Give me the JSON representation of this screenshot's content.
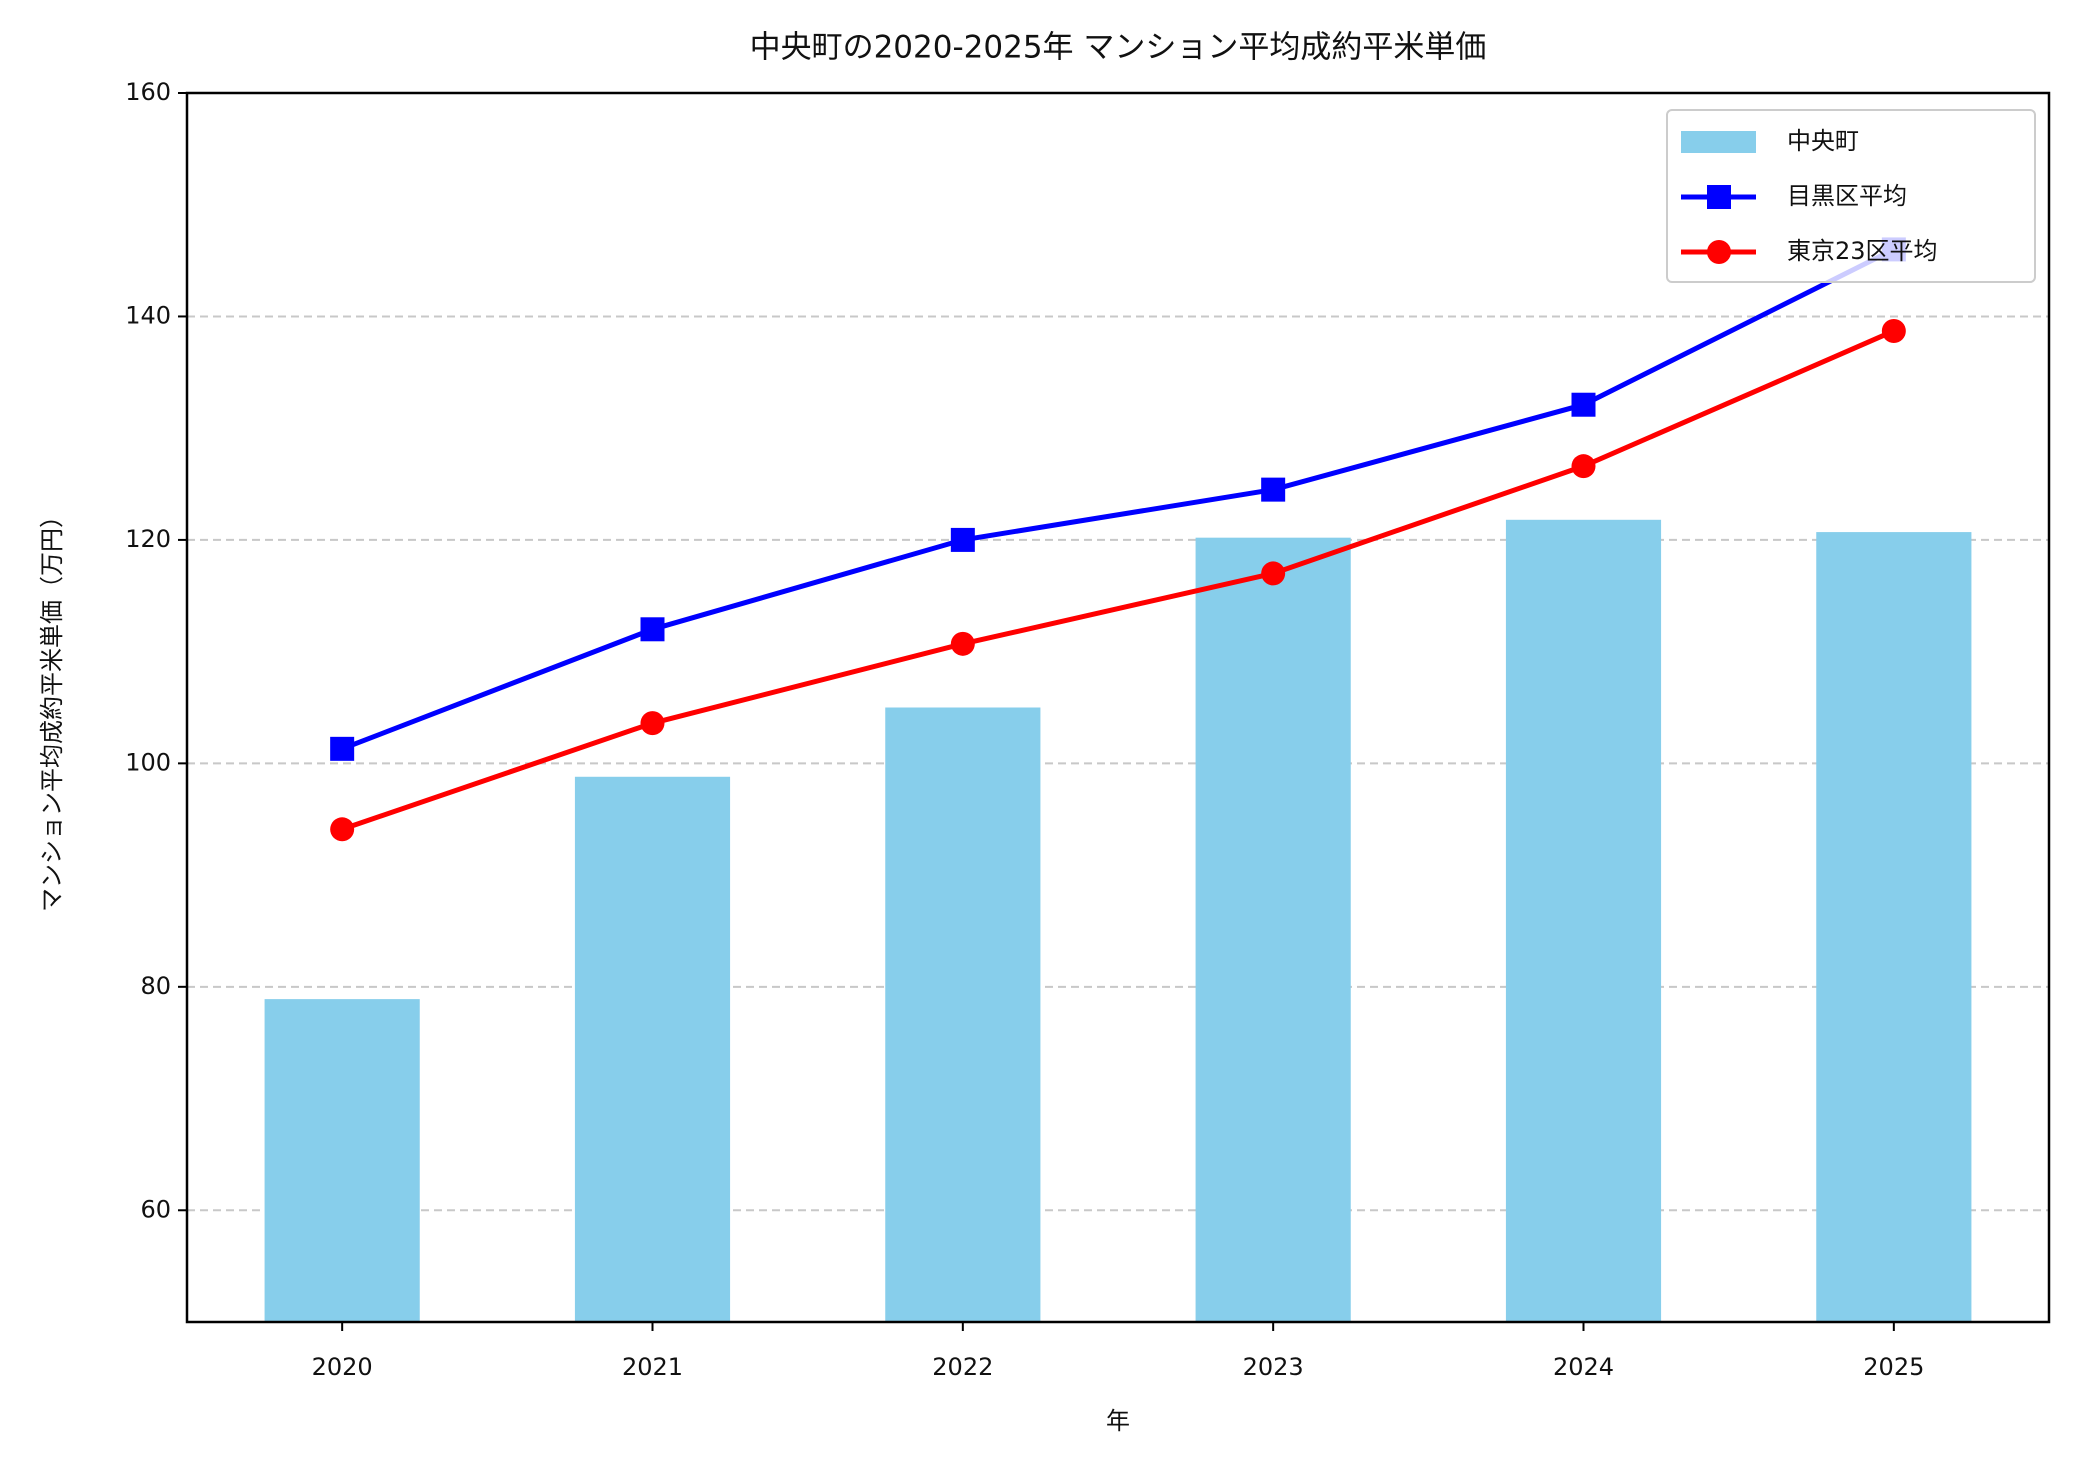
{
  "chart_data": {
    "type": "combo",
    "title": "中央町の2020-2025年 マンション平均成約平米単価",
    "x_label": "年",
    "y_label": "マンション平均成約平米単価（万円）",
    "categories": [
      "2020",
      "2021",
      "2022",
      "2023",
      "2024",
      "2025"
    ],
    "series": [
      {
        "name": "中央町",
        "type": "bar",
        "color": "#87ceeb",
        "values": [
          78.9,
          98.8,
          105.0,
          120.2,
          121.8,
          120.7
        ]
      },
      {
        "name": "目黒区平均",
        "type": "line",
        "marker": "square",
        "color": "#0000ff",
        "values": [
          101.3,
          112.0,
          120.0,
          124.5,
          132.1,
          146.0
        ]
      },
      {
        "name": "東京23区平均",
        "type": "line",
        "marker": "circle",
        "color": "#ff0000",
        "values": [
          94.1,
          103.6,
          110.7,
          117.0,
          126.6,
          138.7
        ]
      }
    ],
    "ylim": [
      50,
      160
    ],
    "yticks": [
      60,
      80,
      100,
      120,
      140,
      160
    ],
    "grid": true,
    "legend": "upper right"
  }
}
